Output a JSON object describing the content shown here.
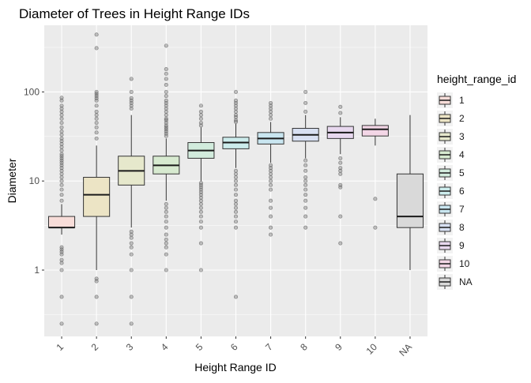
{
  "chart_data": {
    "type": "box",
    "title": "Diameter of Trees in Height Range IDs",
    "xlabel": "Height Range ID",
    "ylabel": "Diameter",
    "yscale": "log10",
    "ylim": [
      0.18,
      560
    ],
    "yticks": [
      1,
      10,
      100
    ],
    "ytick_labels": [
      "1",
      "10",
      "100"
    ],
    "grid": true,
    "legend_position": "right",
    "legend_title": "height_range_id",
    "categories": [
      "1",
      "2",
      "3",
      "4",
      "5",
      "6",
      "7",
      "8",
      "9",
      "10",
      "NA"
    ],
    "boxes": [
      {
        "id": "1",
        "fill": "#f8ddd9",
        "q1": 3,
        "median": 3,
        "q3": 4,
        "whisker_low": 2.5,
        "whisker_high": 5.5,
        "outliers_high": [
          6,
          7,
          8,
          9,
          10,
          11,
          12,
          13,
          14,
          15,
          16,
          17,
          18,
          19,
          20,
          22,
          24,
          26,
          28,
          30,
          33,
          36,
          40,
          45,
          50,
          55,
          60,
          65,
          70,
          80,
          86
        ],
        "outliers_low": [
          1.8,
          1.7,
          1.6,
          1.5,
          1.3,
          1.2,
          1,
          0.5,
          0.25
        ]
      },
      {
        "id": "2",
        "fill": "#ece4c5",
        "q1": 4,
        "median": 7,
        "q3": 11,
        "whisker_low": 1,
        "whisker_high": 25,
        "outliers_high": [
          30,
          35,
          40,
          45,
          50,
          55,
          60,
          70,
          80,
          85,
          90,
          95,
          100,
          310,
          440
        ],
        "outliers_low": [
          0.8,
          0.75,
          0.5,
          0.25
        ]
      },
      {
        "id": "3",
        "fill": "#e6e8cc",
        "q1": 9,
        "median": 13,
        "q3": 19,
        "whisker_low": 3,
        "whisker_high": 55,
        "outliers_high": [
          65,
          70,
          75,
          80,
          85,
          100,
          140
        ],
        "outliers_low": [
          2.7,
          2.5,
          2.3,
          2,
          1.8,
          1.5,
          1,
          0.5,
          0.25
        ]
      },
      {
        "id": "4",
        "fill": "#d7ead0",
        "q1": 12,
        "median": 15,
        "q3": 19,
        "whisker_low": 6,
        "whisker_high": 30,
        "outliers_high": [
          32,
          34,
          36,
          38,
          40,
          42,
          45,
          48,
          50,
          55,
          60,
          65,
          70,
          75,
          80,
          90,
          100,
          120,
          140,
          160,
          180,
          330
        ],
        "outliers_low": [
          5.5,
          5,
          4.5,
          4,
          3.5,
          3,
          2.5,
          2.2,
          2,
          1.8,
          1.5,
          1
        ]
      },
      {
        "id": "5",
        "fill": "#d2ecdd",
        "q1": 18,
        "median": 22,
        "q3": 27,
        "whisker_low": 10,
        "whisker_high": 40,
        "outliers_high": [
          42,
          45,
          50,
          55,
          60,
          70
        ],
        "outliers_low": [
          9.5,
          9,
          8.5,
          8,
          7.5,
          7,
          6.5,
          6,
          5.5,
          5,
          4.5,
          4,
          3.5,
          3,
          2,
          1
        ]
      },
      {
        "id": "6",
        "fill": "#ccecec",
        "q1": 23,
        "median": 27,
        "q3": 31,
        "whisker_low": 14,
        "whisker_high": 44,
        "outliers_high": [
          46,
          48,
          52,
          55,
          60,
          65,
          70,
          75,
          80,
          100
        ],
        "outliers_low": [
          13,
          12,
          11,
          10,
          9,
          8,
          7,
          6,
          5.5,
          5,
          4.5,
          4,
          3.5,
          3,
          0.5
        ]
      },
      {
        "id": "7",
        "fill": "#c9e6f0",
        "q1": 26,
        "median": 30,
        "q3": 35,
        "whisker_low": 16,
        "whisker_high": 46,
        "outliers_high": [
          50,
          55,
          60,
          65,
          70,
          75
        ],
        "outliers_low": [
          15,
          14,
          13,
          12,
          11,
          10,
          9,
          8,
          6,
          5,
          4,
          3,
          2.5
        ]
      },
      {
        "id": "8",
        "fill": "#d8e0f2",
        "q1": 28,
        "median": 33,
        "q3": 39,
        "whisker_low": 18,
        "whisker_high": 55,
        "outliers_high": [
          60,
          75,
          100
        ],
        "outliers_low": [
          17,
          15,
          13,
          11,
          10,
          9,
          8,
          7,
          6,
          5,
          4,
          3
        ]
      },
      {
        "id": "9",
        "fill": "#e8d8ef",
        "q1": 30,
        "median": 35,
        "q3": 41,
        "whisker_low": 20,
        "whisker_high": 52,
        "outliers_high": [
          58,
          68
        ],
        "outliers_low": [
          18,
          16,
          14,
          13,
          12,
          9,
          8.5,
          4,
          2
        ]
      },
      {
        "id": "10",
        "fill": "#f3d6e6",
        "q1": 32,
        "median": 38,
        "q3": 42,
        "whisker_low": 25,
        "whisker_high": 50,
        "outliers_high": [],
        "outliers_low": [
          6.3,
          3
        ]
      },
      {
        "id": "NA",
        "fill": "#d9d9d9",
        "q1": 3,
        "median": 4,
        "q3": 12,
        "whisker_low": 1,
        "whisker_high": 55,
        "outliers_high": [],
        "outliers_low": []
      }
    ]
  },
  "legend": {
    "title": "height_range_id",
    "items": [
      {
        "label": "1",
        "fill": "#f8ddd9"
      },
      {
        "label": "2",
        "fill": "#ece4c5"
      },
      {
        "label": "3",
        "fill": "#e6e8cc"
      },
      {
        "label": "4",
        "fill": "#d7ead0"
      },
      {
        "label": "5",
        "fill": "#d2ecdd"
      },
      {
        "label": "6",
        "fill": "#ccecec"
      },
      {
        "label": "7",
        "fill": "#c9e6f0"
      },
      {
        "label": "8",
        "fill": "#d8e0f2"
      },
      {
        "label": "9",
        "fill": "#e8d8ef"
      },
      {
        "label": "10",
        "fill": "#f3d6e6"
      },
      {
        "label": "NA",
        "fill": "#d9d9d9"
      }
    ]
  },
  "colors": {
    "panel_background": "#ebebeb",
    "grid_major": "#ffffff",
    "axis_text": "#4d4d4d",
    "outline": "#333333",
    "outlier": "#555555"
  }
}
